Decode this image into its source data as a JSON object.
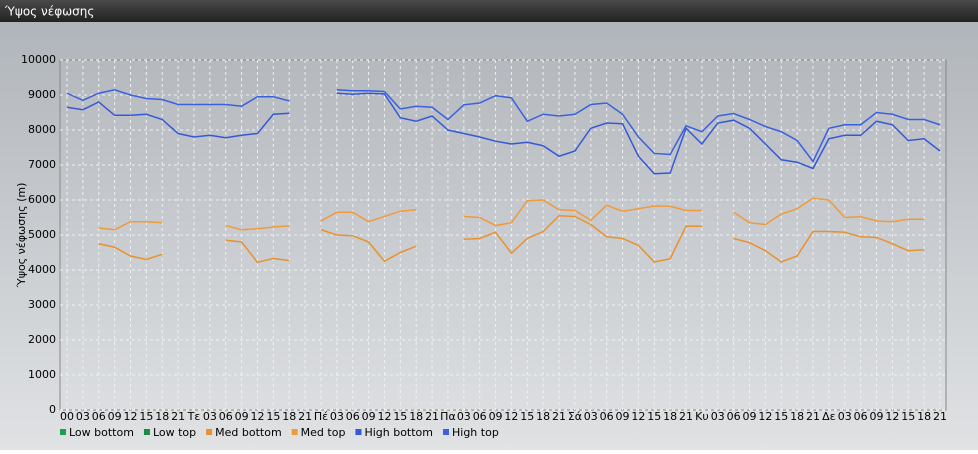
{
  "window_title": "Ύψος νέφωσης",
  "chart_data": {
    "type": "line",
    "ylabel": "Ύψος νέφωσης (m)",
    "categories": [
      "00",
      "03",
      "06",
      "09",
      "12",
      "15",
      "18",
      "21",
      "Τε",
      "03",
      "06",
      "09",
      "12",
      "15",
      "18",
      "21",
      "Πέ",
      "03",
      "06",
      "09",
      "12",
      "15",
      "18",
      "21",
      "Πα",
      "03",
      "06",
      "09",
      "12",
      "15",
      "18",
      "21",
      "Σά",
      "03",
      "06",
      "09",
      "12",
      "15",
      "18",
      "21",
      "Κυ",
      "03",
      "06",
      "09",
      "12",
      "15",
      "18",
      "21",
      "Δε",
      "03",
      "06",
      "09",
      "12",
      "15",
      "18",
      "21"
    ],
    "ylim": [
      0,
      10000
    ],
    "yticks": [
      0,
      1000,
      2000,
      3000,
      4000,
      5000,
      6000,
      7000,
      8000,
      9000,
      10000
    ],
    "grid": true,
    "series": [
      {
        "name": "Low bottom",
        "color": "#1e9e50",
        "values": [
          null,
          null,
          null,
          null,
          null,
          null,
          null,
          null,
          null,
          null,
          null,
          null,
          null,
          null,
          null,
          null,
          null,
          null,
          null,
          null,
          null,
          null,
          null,
          null,
          null,
          null,
          null,
          null,
          null,
          null,
          null,
          null,
          null,
          null,
          null,
          null,
          null,
          null,
          null,
          null,
          null,
          null,
          null,
          null,
          null,
          null,
          null,
          null,
          null,
          null,
          null,
          null,
          null,
          null,
          null,
          null
        ]
      },
      {
        "name": "Low top",
        "color": "#1a8a48",
        "values": [
          null,
          null,
          null,
          null,
          null,
          null,
          null,
          null,
          null,
          null,
          null,
          null,
          null,
          null,
          null,
          null,
          null,
          null,
          null,
          null,
          null,
          null,
          null,
          null,
          null,
          null,
          null,
          null,
          null,
          null,
          null,
          null,
          null,
          null,
          null,
          null,
          null,
          null,
          null,
          null,
          null,
          null,
          null,
          null,
          null,
          null,
          null,
          null,
          null,
          null,
          null,
          null,
          null,
          null,
          null,
          null
        ]
      },
      {
        "name": "Med bottom",
        "color": "#e8922e",
        "values": [
          null,
          null,
          4750,
          4650,
          4400,
          4300,
          4450,
          null,
          null,
          null,
          4850,
          4800,
          4220,
          4330,
          4270,
          null,
          5150,
          5000,
          4980,
          4800,
          4250,
          4500,
          4680,
          null,
          null,
          4880,
          4900,
          5080,
          4480,
          4900,
          5100,
          5550,
          5530,
          5300,
          4950,
          4900,
          4700,
          4230,
          4320,
          5250,
          5250,
          null,
          4900,
          4780,
          4550,
          4230,
          4400,
          5100,
          5100,
          5080,
          4950,
          4930,
          4750,
          4550,
          4580,
          null
        ]
      },
      {
        "name": "Med top",
        "color": "#f09a3a",
        "values": [
          null,
          null,
          5200,
          5150,
          5380,
          5380,
          5350,
          null,
          null,
          null,
          5270,
          5150,
          5180,
          5230,
          5260,
          null,
          5400,
          5650,
          5650,
          5380,
          5530,
          5680,
          5720,
          null,
          null,
          5530,
          5500,
          5270,
          5350,
          5980,
          6000,
          5720,
          5700,
          5420,
          5850,
          5680,
          5750,
          5830,
          5820,
          5700,
          5700,
          null,
          5650,
          5350,
          5300,
          5600,
          5750,
          6050,
          6000,
          5500,
          5520,
          5400,
          5380,
          5450,
          5450,
          null
        ]
      },
      {
        "name": "High bottom",
        "color": "#3558d8",
        "values": [
          8650,
          8580,
          8800,
          8420,
          8420,
          8450,
          8300,
          7900,
          7800,
          7850,
          7780,
          7850,
          7900,
          8450,
          8480,
          null,
          null,
          9050,
          9020,
          9050,
          9030,
          8350,
          8250,
          8400,
          8000,
          7900,
          7800,
          7680,
          7600,
          7650,
          7550,
          7250,
          7400,
          8050,
          8200,
          8180,
          7250,
          6750,
          6770,
          8050,
          7600,
          8200,
          8280,
          8050,
          7600,
          7150,
          7080,
          6900,
          7750,
          7850,
          7850,
          8250,
          8150,
          7700,
          7750,
          7400
        ]
      },
      {
        "name": "High top",
        "color": "#3a60e0",
        "values": [
          9050,
          8850,
          9050,
          9150,
          9000,
          8900,
          8870,
          8730,
          8730,
          8730,
          8730,
          8680,
          8950,
          8950,
          8830,
          null,
          null,
          9150,
          9120,
          9120,
          9100,
          8600,
          8680,
          8650,
          8300,
          8720,
          8770,
          8980,
          8920,
          8250,
          8450,
          8400,
          8450,
          8730,
          8770,
          8450,
          7800,
          7330,
          7300,
          8120,
          7950,
          8400,
          8470,
          8300,
          8100,
          7950,
          7700,
          7100,
          8050,
          8150,
          8150,
          8500,
          8450,
          8300,
          8300,
          8150
        ]
      }
    ]
  }
}
